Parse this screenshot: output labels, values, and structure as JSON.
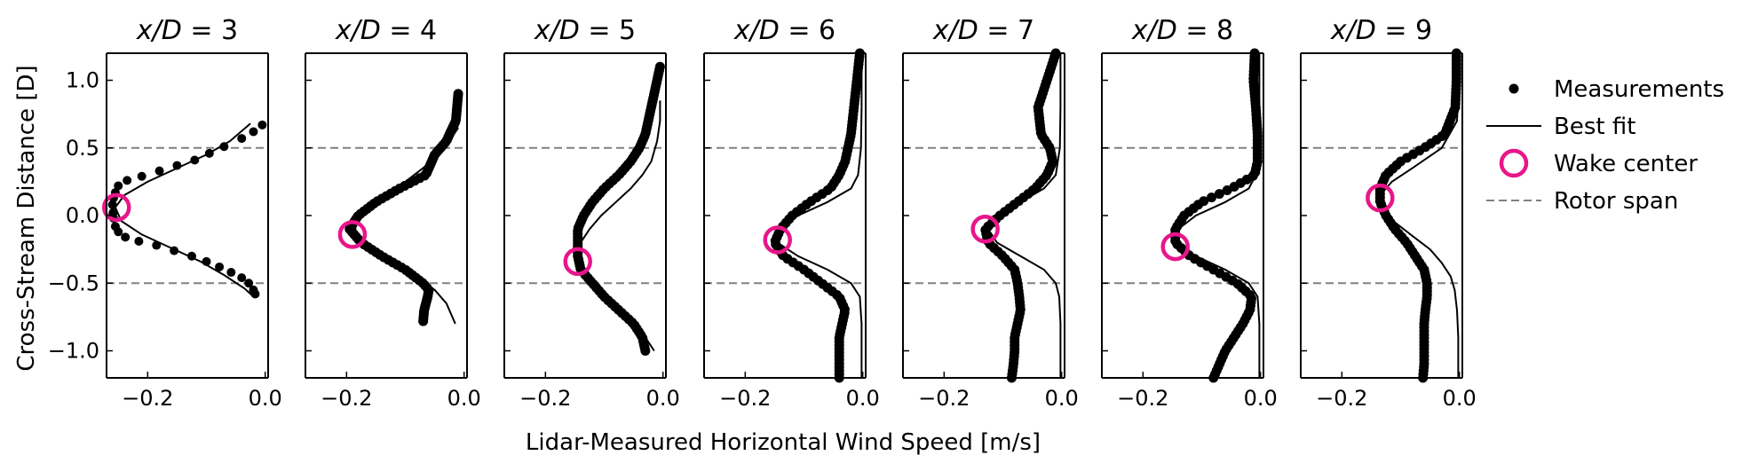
{
  "figure": {
    "ylabel": "Cross-Stream Distance [D]",
    "xlabel": "Lidar-Measured Horizontal Wind Speed [m/s]"
  },
  "legend": {
    "placement": "right",
    "entries": [
      {
        "key": "measurements",
        "label": "Measurements"
      },
      {
        "key": "fit",
        "label": "Best fit"
      },
      {
        "key": "center",
        "label": "Wake center"
      },
      {
        "key": "rotor",
        "label": "Rotor span"
      }
    ]
  },
  "colors": {
    "measurements": "#000000",
    "fit": "#000000",
    "center": "#e8168a",
    "rotor": "#808080"
  },
  "chart_data": [
    {
      "type": "scatter",
      "title": "x/D = 3",
      "title_italic": "x/D",
      "title_value": "3",
      "xlim": [
        -0.27,
        0.005
      ],
      "ylim": [
        -1.2,
        1.2
      ],
      "xticks": [
        "−0.2",
        "0.0"
      ],
      "xtick_values": [
        -0.2,
        0.0
      ],
      "yticks": [
        "−1.0",
        "−0.5",
        "0.0",
        "0.5",
        "1.0"
      ],
      "ytick_values": [
        -1.0,
        -0.5,
        0.0,
        0.5,
        1.0
      ],
      "rotor_span": [
        -0.5,
        0.5
      ],
      "wake_center": {
        "x": -0.253,
        "y": 0.06
      },
      "measurement_style": "dots",
      "measurements": {
        "y": [
          0.67,
          0.62,
          0.57,
          0.51,
          0.46,
          0.41,
          0.37,
          0.33,
          0.29,
          0.26,
          0.22,
          0.17,
          0.13,
          0.08,
          0.02,
          -0.02,
          -0.08,
          -0.12,
          -0.16,
          -0.19,
          -0.22,
          -0.26,
          -0.3,
          -0.34,
          -0.38,
          -0.42,
          -0.46,
          -0.5,
          -0.55,
          -0.58
        ],
        "x": [
          -0.005,
          -0.02,
          -0.04,
          -0.07,
          -0.095,
          -0.12,
          -0.15,
          -0.18,
          -0.21,
          -0.235,
          -0.25,
          -0.255,
          -0.258,
          -0.26,
          -0.259,
          -0.258,
          -0.255,
          -0.25,
          -0.238,
          -0.215,
          -0.185,
          -0.155,
          -0.125,
          -0.1,
          -0.078,
          -0.058,
          -0.04,
          -0.028,
          -0.02,
          -0.017
        ]
      },
      "fit": {
        "y": [
          0.68,
          0.55,
          0.45,
          0.35,
          0.25,
          0.15,
          0.06,
          -0.04,
          -0.14,
          -0.24,
          -0.34,
          -0.44,
          -0.54,
          -0.6
        ],
        "x": [
          -0.025,
          -0.06,
          -0.1,
          -0.15,
          -0.2,
          -0.24,
          -0.255,
          -0.245,
          -0.21,
          -0.16,
          -0.11,
          -0.07,
          -0.035,
          -0.02
        ]
      }
    },
    {
      "type": "scatter",
      "title": "x/D = 4",
      "title_italic": "x/D",
      "title_value": "4",
      "xlim": [
        -0.27,
        0.005
      ],
      "ylim": [
        -1.2,
        1.2
      ],
      "xticks": [
        "−0.2",
        "0.0"
      ],
      "xtick_values": [
        -0.2,
        0.0
      ],
      "yticks": [
        "−1.0",
        "−0.5",
        "0.0",
        "0.5",
        "1.0"
      ],
      "ytick_values": [
        -1.0,
        -0.5,
        0.0,
        0.5,
        1.0
      ],
      "rotor_span": [
        -0.5,
        0.5
      ],
      "wake_center": {
        "x": -0.19,
        "y": -0.14
      },
      "measurement_style": "dense",
      "measurements": {
        "y": [
          0.9,
          0.8,
          0.7,
          0.6,
          0.55,
          0.45,
          0.35,
          0.3,
          0.2,
          0.1,
          0.0,
          -0.1,
          -0.2,
          -0.3,
          -0.4,
          -0.5,
          -0.55,
          -0.6,
          -0.7,
          -0.8
        ],
        "x": [
          -0.01,
          -0.012,
          -0.014,
          -0.025,
          -0.03,
          -0.05,
          -0.06,
          -0.065,
          -0.11,
          -0.15,
          -0.18,
          -0.195,
          -0.175,
          -0.14,
          -0.1,
          -0.07,
          -0.06,
          -0.062,
          -0.068,
          -0.07
        ]
      },
      "fit": {
        "y": [
          0.65,
          0.55,
          0.45,
          0.35,
          0.25,
          0.15,
          0.05,
          -0.05,
          -0.15,
          -0.25,
          -0.35,
          -0.45,
          -0.55,
          -0.65,
          -0.8
        ],
        "x": [
          -0.01,
          -0.025,
          -0.045,
          -0.07,
          -0.1,
          -0.135,
          -0.165,
          -0.185,
          -0.185,
          -0.16,
          -0.12,
          -0.08,
          -0.05,
          -0.03,
          -0.015
        ]
      }
    },
    {
      "type": "scatter",
      "title": "x/D = 5",
      "title_italic": "x/D",
      "title_value": "5",
      "xlim": [
        -0.27,
        0.005
      ],
      "ylim": [
        -1.2,
        1.2
      ],
      "xticks": [
        "−0.2",
        "0.0"
      ],
      "xtick_values": [
        -0.2,
        0.0
      ],
      "yticks": [
        "−1.0",
        "−0.5",
        "0.0",
        "0.5",
        "1.0"
      ],
      "ytick_values": [
        -1.0,
        -0.5,
        0.0,
        0.5,
        1.0
      ],
      "rotor_span": [
        -0.5,
        0.5
      ],
      "wake_center": {
        "x": -0.145,
        "y": -0.34
      },
      "measurement_style": "dense",
      "measurements": {
        "y": [
          1.1,
          1.0,
          0.9,
          0.8,
          0.7,
          0.6,
          0.5,
          0.4,
          0.3,
          0.2,
          0.1,
          0.0,
          -0.1,
          -0.2,
          -0.3,
          -0.4,
          -0.5,
          -0.6,
          -0.7,
          -0.8,
          -0.9,
          -1.0
        ],
        "x": [
          -0.005,
          -0.01,
          -0.015,
          -0.02,
          -0.025,
          -0.03,
          -0.04,
          -0.055,
          -0.075,
          -0.1,
          -0.12,
          -0.135,
          -0.145,
          -0.145,
          -0.145,
          -0.14,
          -0.12,
          -0.1,
          -0.075,
          -0.05,
          -0.035,
          -0.03
        ]
      },
      "fit": {
        "y": [
          0.85,
          0.7,
          0.55,
          0.4,
          0.3,
          0.2,
          0.1,
          0.0,
          -0.1,
          -0.2,
          -0.3,
          -0.4,
          -0.5,
          -0.6,
          -0.75,
          -0.9,
          -1.0
        ],
        "x": [
          -0.005,
          -0.005,
          -0.01,
          -0.02,
          -0.035,
          -0.055,
          -0.08,
          -0.105,
          -0.125,
          -0.14,
          -0.145,
          -0.14,
          -0.12,
          -0.095,
          -0.06,
          -0.03,
          -0.015
        ]
      }
    },
    {
      "type": "scatter",
      "title": "x/D = 6",
      "title_italic": "x/D",
      "title_value": "6",
      "xlim": [
        -0.27,
        0.005
      ],
      "ylim": [
        -1.2,
        1.2
      ],
      "xticks": [
        "−0.2",
        "0.0"
      ],
      "xtick_values": [
        -0.2,
        0.0
      ],
      "yticks": [
        "−1.0",
        "−0.5",
        "0.0",
        "0.5",
        "1.0"
      ],
      "ytick_values": [
        -1.0,
        -0.5,
        0.0,
        0.5,
        1.0
      ],
      "rotor_span": [
        -0.5,
        0.5
      ],
      "wake_center": {
        "x": -0.145,
        "y": -0.18
      },
      "measurement_style": "dense",
      "measurements": {
        "y": [
          1.2,
          1.0,
          0.8,
          0.6,
          0.4,
          0.3,
          0.2,
          0.1,
          0.0,
          -0.1,
          -0.2,
          -0.3,
          -0.4,
          -0.5,
          -0.6,
          -0.7,
          -0.8,
          -0.9,
          -1.0,
          -1.1,
          -1.2
        ],
        "x": [
          -0.005,
          -0.01,
          -0.015,
          -0.02,
          -0.03,
          -0.04,
          -0.055,
          -0.09,
          -0.12,
          -0.14,
          -0.15,
          -0.135,
          -0.1,
          -0.07,
          -0.04,
          -0.03,
          -0.035,
          -0.04,
          -0.04,
          -0.04,
          -0.04
        ]
      },
      "fit": {
        "y": [
          1.2,
          0.8,
          0.5,
          0.3,
          0.2,
          0.1,
          0.0,
          -0.1,
          -0.2,
          -0.3,
          -0.4,
          -0.5,
          -0.6,
          -0.8,
          -1.2
        ],
        "x": [
          -0.002,
          -0.002,
          -0.003,
          -0.008,
          -0.02,
          -0.06,
          -0.11,
          -0.14,
          -0.145,
          -0.11,
          -0.06,
          -0.02,
          -0.005,
          -0.002,
          -0.002
        ]
      }
    },
    {
      "type": "scatter",
      "title": "x/D = 7",
      "title_italic": "x/D",
      "title_value": "7",
      "xlim": [
        -0.27,
        0.005
      ],
      "ylim": [
        -1.2,
        1.2
      ],
      "xticks": [
        "−0.2",
        "0.0"
      ],
      "xtick_values": [
        -0.2,
        0.0
      ],
      "yticks": [
        "−1.0",
        "−0.5",
        "0.0",
        "0.5",
        "1.0"
      ],
      "ytick_values": [
        -1.0,
        -0.5,
        0.0,
        0.5,
        1.0
      ],
      "rotor_span": [
        -0.5,
        0.5
      ],
      "wake_center": {
        "x": -0.13,
        "y": -0.1
      },
      "measurement_style": "dense",
      "measurements": {
        "y": [
          1.2,
          1.0,
          0.8,
          0.6,
          0.5,
          0.4,
          0.3,
          0.2,
          0.1,
          0.0,
          -0.1,
          -0.2,
          -0.3,
          -0.4,
          -0.5,
          -0.6,
          -0.7,
          -0.8,
          -0.9,
          -1.0,
          -1.1,
          -1.2
        ],
        "x": [
          -0.01,
          -0.025,
          -0.04,
          -0.035,
          -0.02,
          -0.015,
          -0.025,
          -0.045,
          -0.075,
          -0.105,
          -0.13,
          -0.125,
          -0.1,
          -0.08,
          -0.075,
          -0.072,
          -0.07,
          -0.075,
          -0.08,
          -0.08,
          -0.082,
          -0.085
        ]
      },
      "fit": {
        "y": [
          1.2,
          0.8,
          0.5,
          0.3,
          0.2,
          0.1,
          0.0,
          -0.1,
          -0.2,
          -0.3,
          -0.4,
          -0.5,
          -0.6,
          -0.8,
          -1.2
        ],
        "x": [
          -0.002,
          -0.002,
          -0.003,
          -0.01,
          -0.03,
          -0.07,
          -0.11,
          -0.125,
          -0.11,
          -0.07,
          -0.03,
          -0.01,
          -0.004,
          -0.002,
          -0.002
        ]
      }
    },
    {
      "type": "scatter",
      "title": "x/D = 8",
      "title_italic": "x/D",
      "title_value": "8",
      "xlim": [
        -0.27,
        0.005
      ],
      "ylim": [
        -1.2,
        1.2
      ],
      "xticks": [
        "−0.2",
        "0.0"
      ],
      "xtick_values": [
        -0.2,
        0.0
      ],
      "yticks": [
        "−1.0",
        "−0.5",
        "0.0",
        "0.5",
        "1.0"
      ],
      "ytick_values": [
        -1.0,
        -0.5,
        0.0,
        0.5,
        1.0
      ],
      "rotor_span": [
        -0.5,
        0.5
      ],
      "wake_center": {
        "x": -0.145,
        "y": -0.23
      },
      "measurement_style": "dense",
      "measurements": {
        "y": [
          1.2,
          1.0,
          0.8,
          0.6,
          0.5,
          0.4,
          0.3,
          0.2,
          0.1,
          0.0,
          -0.1,
          -0.2,
          -0.3,
          -0.4,
          -0.5,
          -0.6,
          -0.7,
          -0.8,
          -0.9,
          -1.0,
          -1.1,
          -1.2
        ],
        "x": [
          -0.01,
          -0.012,
          -0.008,
          -0.005,
          -0.005,
          -0.005,
          -0.01,
          -0.05,
          -0.1,
          -0.13,
          -0.145,
          -0.145,
          -0.12,
          -0.08,
          -0.04,
          -0.015,
          -0.018,
          -0.03,
          -0.045,
          -0.06,
          -0.07,
          -0.08
        ]
      },
      "fit": {
        "y": [
          1.2,
          0.8,
          0.5,
          0.3,
          0.2,
          0.1,
          0.0,
          -0.1,
          -0.2,
          -0.3,
          -0.4,
          -0.5,
          -0.6,
          -0.8,
          -1.2
        ],
        "x": [
          -0.002,
          -0.002,
          -0.003,
          -0.008,
          -0.02,
          -0.06,
          -0.11,
          -0.14,
          -0.145,
          -0.11,
          -0.06,
          -0.02,
          -0.005,
          -0.002,
          -0.002
        ]
      }
    },
    {
      "type": "scatter",
      "title": "x/D = 9",
      "title_italic": "x/D",
      "title_value": "9",
      "xlim": [
        -0.27,
        0.005
      ],
      "ylim": [
        -1.2,
        1.2
      ],
      "xticks": [
        "−0.2",
        "0.0"
      ],
      "xtick_values": [
        -0.2,
        0.0
      ],
      "yticks": [
        "−1.0",
        "−0.5",
        "0.0",
        "0.5",
        "1.0"
      ],
      "ytick_values": [
        -1.0,
        -0.5,
        0.0,
        0.5,
        1.0
      ],
      "rotor_span": [
        -0.5,
        0.5
      ],
      "wake_center": {
        "x": -0.135,
        "y": 0.13
      },
      "measurement_style": "dense",
      "measurements": {
        "y": [
          1.2,
          1.0,
          0.8,
          0.6,
          0.5,
          0.4,
          0.3,
          0.2,
          0.1,
          0.0,
          -0.1,
          -0.2,
          -0.3,
          -0.4,
          -0.5,
          -0.6,
          -0.7,
          -0.8,
          -0.9,
          -1.0,
          -1.1,
          -1.2
        ],
        "x": [
          -0.005,
          -0.005,
          -0.007,
          -0.025,
          -0.06,
          -0.1,
          -0.125,
          -0.135,
          -0.135,
          -0.125,
          -0.11,
          -0.09,
          -0.075,
          -0.06,
          -0.055,
          -0.055,
          -0.058,
          -0.06,
          -0.06,
          -0.06,
          -0.06,
          -0.062
        ]
      },
      "fit": {
        "y": [
          1.2,
          0.9,
          0.7,
          0.5,
          0.35,
          0.25,
          0.15,
          0.05,
          -0.05,
          -0.15,
          -0.25,
          -0.35,
          -0.45,
          -0.55,
          -0.7,
          -0.9,
          -1.2
        ],
        "x": [
          -0.002,
          -0.002,
          -0.004,
          -0.03,
          -0.08,
          -0.115,
          -0.135,
          -0.13,
          -0.11,
          -0.08,
          -0.05,
          -0.03,
          -0.015,
          -0.008,
          -0.004,
          -0.002,
          -0.002
        ]
      }
    }
  ]
}
